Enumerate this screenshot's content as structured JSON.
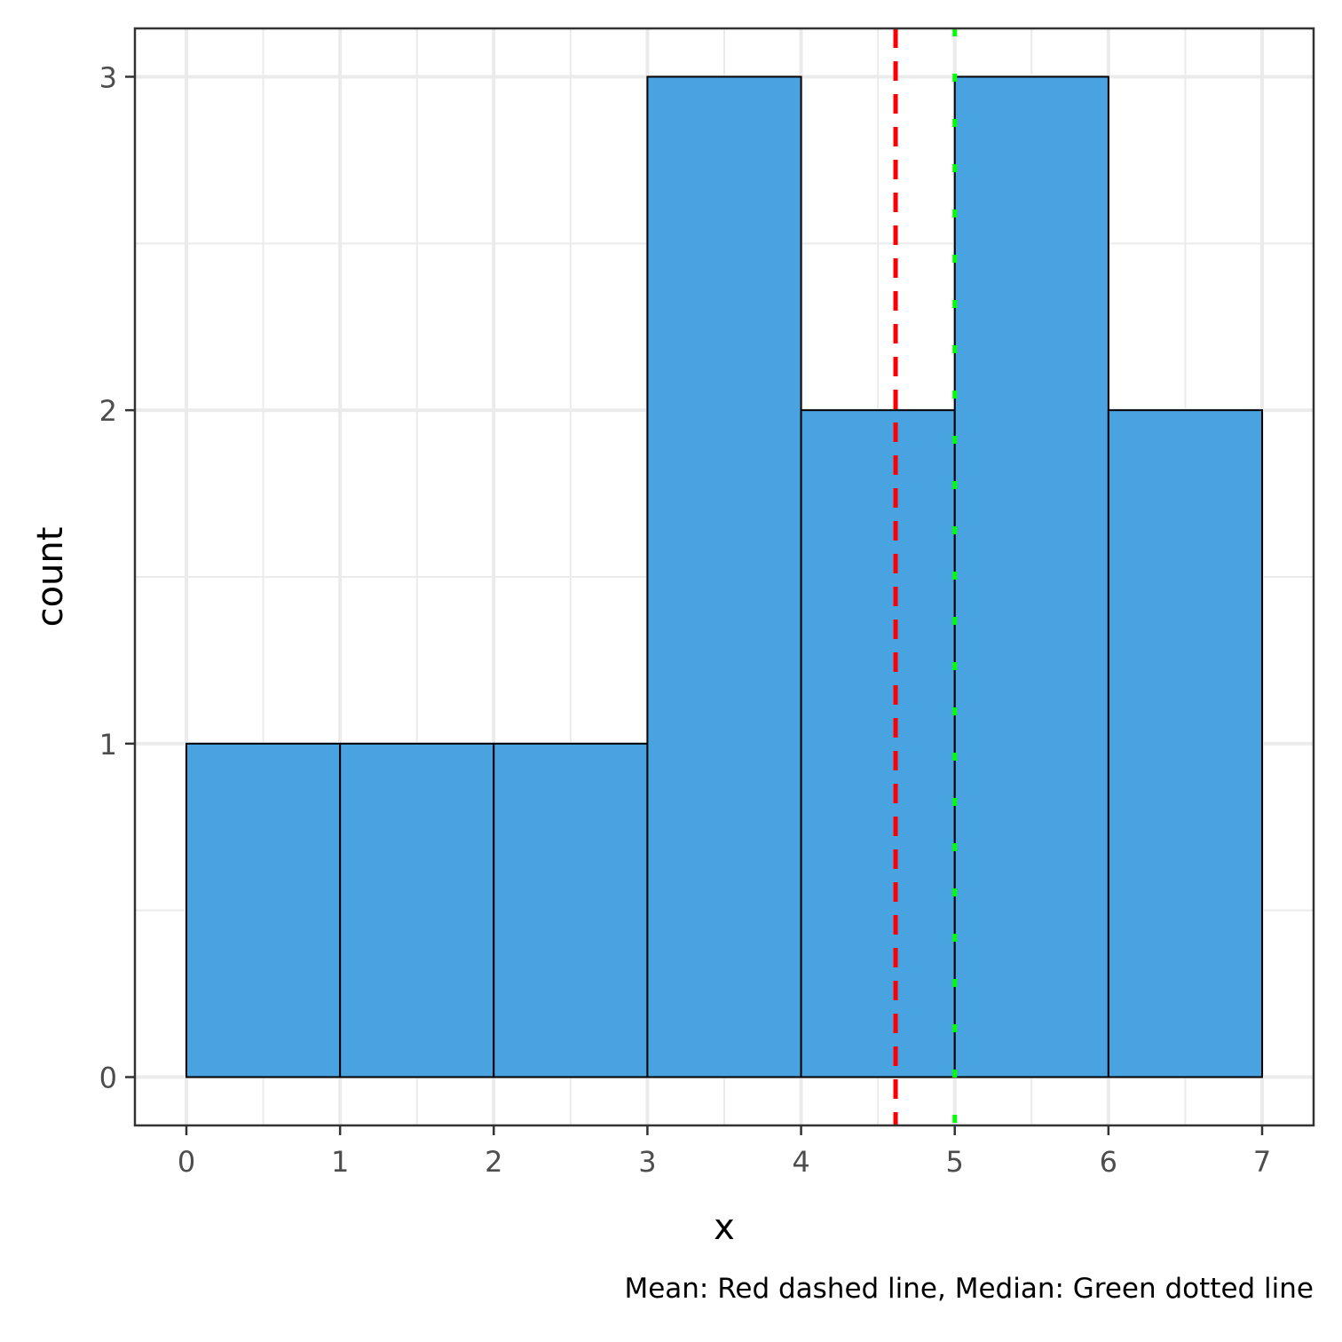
{
  "chart_data": {
    "type": "bar",
    "subtype": "histogram",
    "bins": [
      {
        "x_start": 0,
        "x_end": 1,
        "count": 1
      },
      {
        "x_start": 1,
        "x_end": 2,
        "count": 1
      },
      {
        "x_start": 2,
        "x_end": 3,
        "count": 1
      },
      {
        "x_start": 3,
        "x_end": 4,
        "count": 3
      },
      {
        "x_start": 4,
        "x_end": 5,
        "count": 2
      },
      {
        "x_start": 5,
        "x_end": 6,
        "count": 3
      },
      {
        "x_start": 6,
        "x_end": 7,
        "count": 2
      }
    ],
    "xlabel": "x",
    "ylabel": "count",
    "caption": "Mean: Red dashed line, Median: Green dotted line",
    "xlim": [
      -0.335,
      7.335
    ],
    "ylim": [
      -0.145,
      3.145
    ],
    "x_ticks": [
      0,
      1,
      2,
      3,
      4,
      5,
      6,
      7
    ],
    "x_minor_ticks": [
      0.5,
      1.5,
      2.5,
      3.5,
      4.5,
      5.5,
      6.5
    ],
    "y_ticks": [
      0,
      1,
      2,
      3
    ],
    "y_minor_ticks": [
      0.5,
      1.5,
      2.5
    ],
    "grid": true,
    "reference_lines": [
      {
        "stat": "mean",
        "x": 4.615,
        "color": "#ff0000",
        "style": "dashed"
      },
      {
        "stat": "median",
        "x": 5,
        "color": "#00ff00",
        "style": "dotted"
      }
    ],
    "colors": {
      "bar_fill": "#49a3e0",
      "bar_stroke": "#000000",
      "grid": "#ebebeb",
      "panel_border": "#333333"
    }
  }
}
